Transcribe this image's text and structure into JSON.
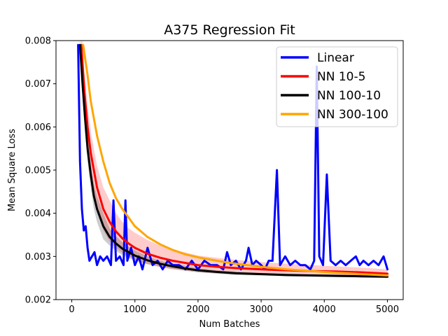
{
  "chart_data": {
    "type": "line",
    "title": "A375 Regression Fit",
    "xlabel": "Num Batches",
    "ylabel": "Mean Square Loss",
    "xlim": [
      -250,
      5250
    ],
    "ylim": [
      0.002,
      0.008
    ],
    "xticks": [
      0,
      1000,
      2000,
      3000,
      4000,
      5000
    ],
    "xtick_labels": [
      "0",
      "1000",
      "2000",
      "3000",
      "4000",
      "5000"
    ],
    "yticks": [
      0.002,
      0.003,
      0.004,
      0.005,
      0.006,
      0.007,
      0.008
    ],
    "ytick_labels": [
      "0.002",
      "0.003",
      "0.004",
      "0.005",
      "0.006",
      "0.007",
      "0.008"
    ],
    "grid": false,
    "legend_position": "top-right",
    "series": [
      {
        "name": "Linear",
        "color": "#0000ff",
        "x": [
          100,
          130,
          160,
          190,
          220,
          250,
          280,
          320,
          360,
          400,
          450,
          500,
          560,
          620,
          660,
          700,
          760,
          820,
          850,
          880,
          940,
          1000,
          1060,
          1120,
          1200,
          1280,
          1360,
          1440,
          1520,
          1600,
          1700,
          1800,
          1900,
          2000,
          2100,
          2200,
          2300,
          2400,
          2460,
          2520,
          2600,
          2680,
          2760,
          2800,
          2860,
          2920,
          3000,
          3060,
          3120,
          3180,
          3250,
          3300,
          3380,
          3460,
          3540,
          3620,
          3700,
          3780,
          3840,
          3880,
          3920,
          3980,
          4040,
          4100,
          4180,
          4260,
          4340,
          4420,
          4500,
          4560,
          4620,
          4700,
          4780,
          4860,
          4940,
          5000
        ],
        "values": [
          0.0079,
          0.0052,
          0.0041,
          0.0036,
          0.0037,
          0.0032,
          0.0029,
          0.003,
          0.0031,
          0.0028,
          0.003,
          0.0029,
          0.003,
          0.0028,
          0.0043,
          0.0029,
          0.003,
          0.0028,
          0.0043,
          0.0029,
          0.0032,
          0.0028,
          0.003,
          0.0027,
          0.0032,
          0.0028,
          0.0029,
          0.0027,
          0.0029,
          0.0028,
          0.0028,
          0.0027,
          0.0029,
          0.0027,
          0.0029,
          0.0028,
          0.0028,
          0.0027,
          0.0031,
          0.0028,
          0.0029,
          0.0027,
          0.0029,
          0.0032,
          0.0028,
          0.0029,
          0.0028,
          0.0027,
          0.0029,
          0.0029,
          0.005,
          0.0028,
          0.003,
          0.0028,
          0.0029,
          0.0028,
          0.0028,
          0.0027,
          0.0029,
          0.0074,
          0.003,
          0.0028,
          0.0049,
          0.0029,
          0.0028,
          0.0029,
          0.0028,
          0.0029,
          0.003,
          0.0028,
          0.0029,
          0.0028,
          0.0029,
          0.0028,
          0.003,
          0.0027
        ]
      },
      {
        "name": "NN 10-5",
        "color": "#ff0000",
        "x": [
          150,
          200,
          250,
          300,
          350,
          400,
          500,
          600,
          700,
          800,
          900,
          1000,
          1200,
          1400,
          1600,
          1800,
          2000,
          2300,
          2600,
          3000,
          3400,
          3800,
          4200,
          4600,
          5000
        ],
        "values": [
          0.0079,
          0.0068,
          0.006,
          0.0054,
          0.005,
          0.0046,
          0.0041,
          0.0038,
          0.00358,
          0.00342,
          0.0033,
          0.0032,
          0.00306,
          0.00297,
          0.0029,
          0.00285,
          0.0028,
          0.00276,
          0.00273,
          0.0027,
          0.00268,
          0.00266,
          0.00265,
          0.00263,
          0.0026
        ],
        "band_upper": [
          0.0083,
          0.0073,
          0.0065,
          0.0059,
          0.0055,
          0.0051,
          0.0046,
          0.0043,
          0.004,
          0.0038,
          0.00365,
          0.00355,
          0.00338,
          0.00325,
          0.00316,
          0.00309,
          0.00302,
          0.00297,
          0.00292,
          0.00287,
          0.00283,
          0.0028,
          0.00277,
          0.00274,
          0.0027
        ],
        "band_lower": [
          0.0076,
          0.0064,
          0.0055,
          0.0049,
          0.0045,
          0.0041,
          0.0036,
          0.00335,
          0.0032,
          0.00308,
          0.003,
          0.00292,
          0.00282,
          0.00275,
          0.0027,
          0.00267,
          0.00264,
          0.00261,
          0.00259,
          0.00257,
          0.00256,
          0.00255,
          0.00254,
          0.00253,
          0.00252
        ]
      },
      {
        "name": "NN 100-10",
        "color": "#000000",
        "x": [
          130,
          170,
          210,
          250,
          300,
          350,
          400,
          500,
          600,
          700,
          800,
          900,
          1000,
          1200,
          1400,
          1600,
          1800,
          2000,
          2300,
          2600,
          3000,
          3400,
          3800,
          4200,
          4600,
          5000
        ],
        "values": [
          0.0079,
          0.007,
          0.0062,
          0.0055,
          0.0049,
          0.0044,
          0.0041,
          0.0037,
          0.00345,
          0.0033,
          0.00318,
          0.0031,
          0.00302,
          0.00291,
          0.00283,
          0.00277,
          0.00272,
          0.00268,
          0.00264,
          0.00261,
          0.00259,
          0.00257,
          0.00256,
          0.00255,
          0.00254,
          0.00253
        ],
        "band_upper": [
          0.0081,
          0.0073,
          0.0065,
          0.0058,
          0.0052,
          0.0047,
          0.0044,
          0.004,
          0.00365,
          0.00347,
          0.00333,
          0.00323,
          0.00314,
          0.003,
          0.0029,
          0.00283,
          0.00278,
          0.00273,
          0.00268,
          0.00265,
          0.00262,
          0.0026,
          0.00259,
          0.00258,
          0.00257,
          0.00256
        ],
        "band_lower": [
          0.0077,
          0.0067,
          0.0059,
          0.0052,
          0.0046,
          0.0041,
          0.0038,
          0.0034,
          0.00325,
          0.00313,
          0.00303,
          0.00297,
          0.0029,
          0.00282,
          0.00276,
          0.00271,
          0.00267,
          0.00263,
          0.0026,
          0.00257,
          0.00256,
          0.00254,
          0.00253,
          0.00252,
          0.00251,
          0.0025
        ]
      },
      {
        "name": "NN 300-100",
        "color": "#ffa500",
        "x": [
          180,
          250,
          300,
          400,
          500,
          600,
          700,
          800,
          900,
          1000,
          1200,
          1400,
          1600,
          1800,
          2000,
          2300,
          2600,
          3000,
          3400,
          3800,
          4200,
          4600,
          5000
        ],
        "values": [
          0.0079,
          0.0072,
          0.0066,
          0.0058,
          0.0052,
          0.0047,
          0.00435,
          0.0041,
          0.0039,
          0.0037,
          0.00345,
          0.00328,
          0.00315,
          0.00305,
          0.00298,
          0.0029,
          0.00283,
          0.00276,
          0.0027,
          0.00266,
          0.00262,
          0.00259,
          0.00256
        ]
      }
    ]
  }
}
